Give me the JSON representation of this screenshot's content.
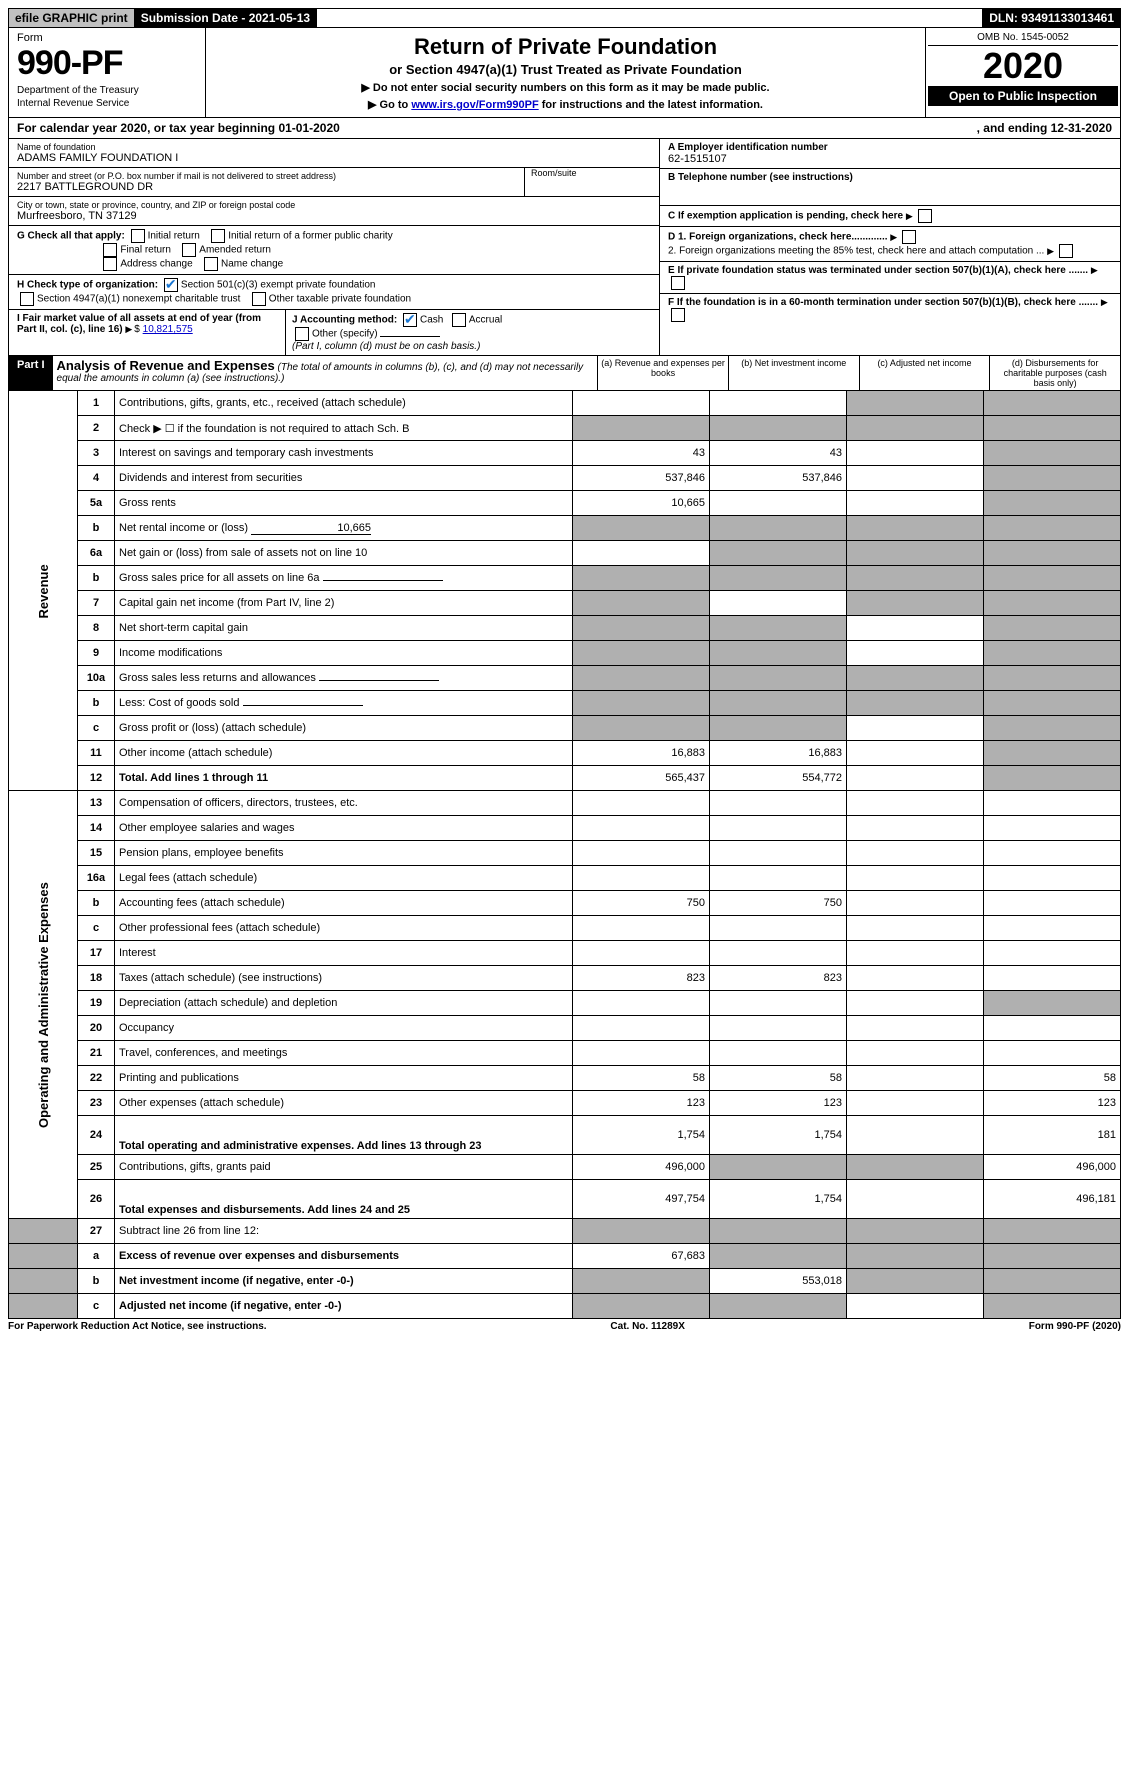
{
  "topbar": {
    "efile": "efile GRAPHIC print",
    "submission": "Submission Date - 2021-05-13",
    "dln": "DLN: 93491133013461"
  },
  "header": {
    "form_label": "Form",
    "form_no": "990-PF",
    "dept1": "Department of the Treasury",
    "dept2": "Internal Revenue Service",
    "title1": "Return of Private Foundation",
    "title2": "or Section 4947(a)(1) Trust Treated as Private Foundation",
    "note1": "▶ Do not enter social security numbers on this form as it may be made public.",
    "note2_pre": "▶ Go to ",
    "note2_link": "www.irs.gov/Form990PF",
    "note2_post": " for instructions and the latest information.",
    "omb": "OMB No. 1545-0052",
    "year": "2020",
    "inspection": "Open to Public Inspection"
  },
  "cal": {
    "left": "For calendar year 2020, or tax year beginning 01-01-2020",
    "right": ", and ending 12-31-2020"
  },
  "info": {
    "name_lbl": "Name of foundation",
    "name": "ADAMS FAMILY FOUNDATION I",
    "addr_lbl": "Number and street (or P.O. box number if mail is not delivered to street address)",
    "addr": "2217 BATTLEGROUND DR",
    "room_lbl": "Room/suite",
    "city_lbl": "City or town, state or province, country, and ZIP or foreign postal code",
    "city": "Murfreesboro, TN  37129",
    "a_lbl": "A Employer identification number",
    "a_val": "62-1515107",
    "b_lbl": "B Telephone number (see instructions)",
    "c_lbl": "C If exemption application is pending, check here",
    "g_lbl": "G Check all that apply:",
    "g_opts": [
      "Initial return",
      "Initial return of a former public charity",
      "Final return",
      "Amended return",
      "Address change",
      "Name change"
    ],
    "h_lbl": "H Check type of organization:",
    "h1": "Section 501(c)(3) exempt private foundation",
    "h2": "Section 4947(a)(1) nonexempt charitable trust",
    "h3": "Other taxable private foundation",
    "i_lbl": "I Fair market value of all assets at end of year (from Part II, col. (c), line 16)",
    "i_val": "10,821,575",
    "j_lbl": "J Accounting method:",
    "j_cash": "Cash",
    "j_accrual": "Accrual",
    "j_other": "Other (specify)",
    "j_note": "(Part I, column (d) must be on cash basis.)",
    "d1": "D 1. Foreign organizations, check here.............",
    "d2": "2. Foreign organizations meeting the 85% test, check here and attach computation ...",
    "e": "E  If private foundation status was terminated under section 507(b)(1)(A), check here .......",
    "f": "F  If the foundation is in a 60-month termination under section 507(b)(1)(B), check here ......."
  },
  "part1": {
    "label": "Part I",
    "title": "Analysis of Revenue and Expenses",
    "note": "(The total of amounts in columns (b), (c), and (d) may not necessarily equal the amounts in column (a) (see instructions).)",
    "col_a": "(a) Revenue and expenses per books",
    "col_b": "(b) Net investment income",
    "col_c": "(c) Adjusted net income",
    "col_d": "(d) Disbursements for charitable purposes (cash basis only)"
  },
  "sections": {
    "revenue": "Revenue",
    "expenses": "Operating and Administrative Expenses"
  },
  "rows": [
    {
      "sec": "rev",
      "ln": "1",
      "desc": "Contributions, gifts, grants, etc., received (attach schedule)",
      "a": "",
      "b": "",
      "c": "g",
      "d": "g"
    },
    {
      "sec": "rev",
      "ln": "2",
      "desc": "Check ▶ ☐ if the foundation is not required to attach Sch. B",
      "a": "g",
      "b": "g",
      "c": "g",
      "d": "g",
      "descHtml": true
    },
    {
      "sec": "rev",
      "ln": "3",
      "desc": "Interest on savings and temporary cash investments",
      "a": "43",
      "b": "43",
      "c": "",
      "d": "g"
    },
    {
      "sec": "rev",
      "ln": "4",
      "desc": "Dividends and interest from securities",
      "a": "537,846",
      "b": "537,846",
      "c": "",
      "d": "g"
    },
    {
      "sec": "rev",
      "ln": "5a",
      "desc": "Gross rents",
      "a": "10,665",
      "b": "",
      "c": "",
      "d": "g"
    },
    {
      "sec": "rev",
      "ln": "b",
      "desc": "Net rental income or (loss)",
      "a": "g",
      "b": "g",
      "c": "g",
      "d": "g",
      "inline": "10,665"
    },
    {
      "sec": "rev",
      "ln": "6a",
      "desc": "Net gain or (loss) from sale of assets not on line 10",
      "a": "",
      "b": "g",
      "c": "g",
      "d": "g"
    },
    {
      "sec": "rev",
      "ln": "b",
      "desc": "Gross sales price for all assets on line 6a",
      "a": "g",
      "b": "g",
      "c": "g",
      "d": "g",
      "inline": ""
    },
    {
      "sec": "rev",
      "ln": "7",
      "desc": "Capital gain net income (from Part IV, line 2)",
      "a": "g",
      "b": "",
      "c": "g",
      "d": "g"
    },
    {
      "sec": "rev",
      "ln": "8",
      "desc": "Net short-term capital gain",
      "a": "g",
      "b": "g",
      "c": "",
      "d": "g"
    },
    {
      "sec": "rev",
      "ln": "9",
      "desc": "Income modifications",
      "a": "g",
      "b": "g",
      "c": "",
      "d": "g"
    },
    {
      "sec": "rev",
      "ln": "10a",
      "desc": "Gross sales less returns and allowances",
      "a": "g",
      "b": "g",
      "c": "g",
      "d": "g",
      "inline": ""
    },
    {
      "sec": "rev",
      "ln": "b",
      "desc": "Less: Cost of goods sold",
      "a": "g",
      "b": "g",
      "c": "g",
      "d": "g",
      "inline": ""
    },
    {
      "sec": "rev",
      "ln": "c",
      "desc": "Gross profit or (loss) (attach schedule)",
      "a": "g",
      "b": "g",
      "c": "",
      "d": "g"
    },
    {
      "sec": "rev",
      "ln": "11",
      "desc": "Other income (attach schedule)",
      "a": "16,883",
      "b": "16,883",
      "c": "",
      "d": "g"
    },
    {
      "sec": "rev",
      "ln": "12",
      "desc": "Total. Add lines 1 through 11",
      "a": "565,437",
      "b": "554,772",
      "c": "",
      "d": "g",
      "bold": true
    },
    {
      "sec": "exp",
      "ln": "13",
      "desc": "Compensation of officers, directors, trustees, etc.",
      "a": "",
      "b": "",
      "c": "",
      "d": ""
    },
    {
      "sec": "exp",
      "ln": "14",
      "desc": "Other employee salaries and wages",
      "a": "",
      "b": "",
      "c": "",
      "d": ""
    },
    {
      "sec": "exp",
      "ln": "15",
      "desc": "Pension plans, employee benefits",
      "a": "",
      "b": "",
      "c": "",
      "d": ""
    },
    {
      "sec": "exp",
      "ln": "16a",
      "desc": "Legal fees (attach schedule)",
      "a": "",
      "b": "",
      "c": "",
      "d": ""
    },
    {
      "sec": "exp",
      "ln": "b",
      "desc": "Accounting fees (attach schedule)",
      "a": "750",
      "b": "750",
      "c": "",
      "d": ""
    },
    {
      "sec": "exp",
      "ln": "c",
      "desc": "Other professional fees (attach schedule)",
      "a": "",
      "b": "",
      "c": "",
      "d": ""
    },
    {
      "sec": "exp",
      "ln": "17",
      "desc": "Interest",
      "a": "",
      "b": "",
      "c": "",
      "d": ""
    },
    {
      "sec": "exp",
      "ln": "18",
      "desc": "Taxes (attach schedule) (see instructions)",
      "a": "823",
      "b": "823",
      "c": "",
      "d": ""
    },
    {
      "sec": "exp",
      "ln": "19",
      "desc": "Depreciation (attach schedule) and depletion",
      "a": "",
      "b": "",
      "c": "",
      "d": "g"
    },
    {
      "sec": "exp",
      "ln": "20",
      "desc": "Occupancy",
      "a": "",
      "b": "",
      "c": "",
      "d": ""
    },
    {
      "sec": "exp",
      "ln": "21",
      "desc": "Travel, conferences, and meetings",
      "a": "",
      "b": "",
      "c": "",
      "d": ""
    },
    {
      "sec": "exp",
      "ln": "22",
      "desc": "Printing and publications",
      "a": "58",
      "b": "58",
      "c": "",
      "d": "58"
    },
    {
      "sec": "exp",
      "ln": "23",
      "desc": "Other expenses (attach schedule)",
      "a": "123",
      "b": "123",
      "c": "",
      "d": "123"
    },
    {
      "sec": "exp",
      "ln": "24",
      "desc": "Total operating and administrative expenses. Add lines 13 through 23",
      "a": "1,754",
      "b": "1,754",
      "c": "",
      "d": "181",
      "bold": true,
      "tall": true
    },
    {
      "sec": "exp",
      "ln": "25",
      "desc": "Contributions, gifts, grants paid",
      "a": "496,000",
      "b": "g",
      "c": "g",
      "d": "496,000"
    },
    {
      "sec": "exp",
      "ln": "26",
      "desc": "Total expenses and disbursements. Add lines 24 and 25",
      "a": "497,754",
      "b": "1,754",
      "c": "",
      "d": "496,181",
      "bold": true,
      "tall": true
    },
    {
      "sec": "none",
      "ln": "27",
      "desc": "Subtract line 26 from line 12:",
      "a": "g",
      "b": "g",
      "c": "g",
      "d": "g"
    },
    {
      "sec": "none",
      "ln": "a",
      "desc": "Excess of revenue over expenses and disbursements",
      "a": "67,683",
      "b": "g",
      "c": "g",
      "d": "g",
      "bold": true
    },
    {
      "sec": "none",
      "ln": "b",
      "desc": "Net investment income (if negative, enter -0-)",
      "a": "g",
      "b": "553,018",
      "c": "g",
      "d": "g",
      "bold": true
    },
    {
      "sec": "none",
      "ln": "c",
      "desc": "Adjusted net income (if negative, enter -0-)",
      "a": "g",
      "b": "g",
      "c": "",
      "d": "g",
      "bold": true
    }
  ],
  "footer": {
    "left": "For Paperwork Reduction Act Notice, see instructions.",
    "center": "Cat. No. 11289X",
    "right": "Form 990-PF (2020)"
  }
}
